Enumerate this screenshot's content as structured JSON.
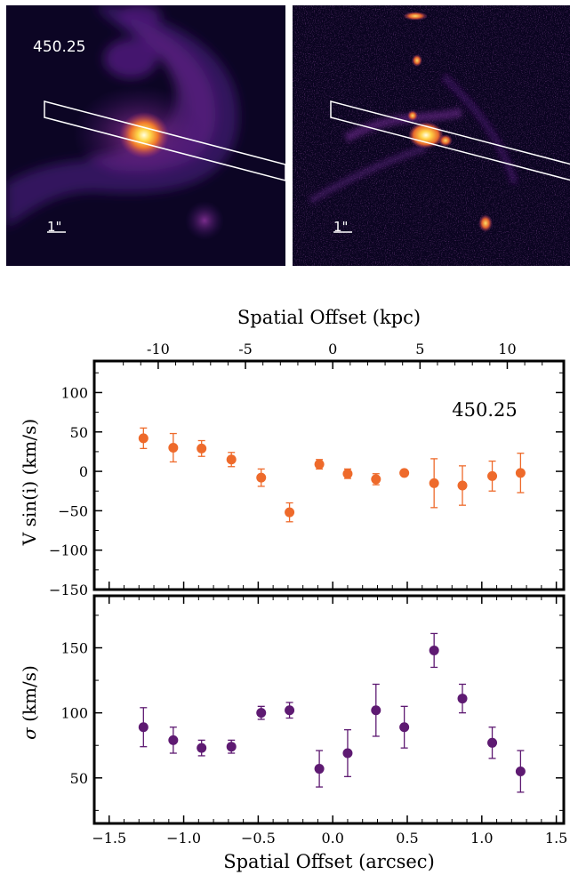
{
  "images": [
    {
      "label": "450.25",
      "scale_label": "1\""
    },
    {
      "label": "",
      "scale_label": "1\""
    }
  ],
  "colors": {
    "velocity": "#ee6a2b",
    "dispersion": "#5e1a72",
    "axes": "#000000"
  },
  "chart_data": [
    {
      "type": "scatter",
      "title": "",
      "annotation": "450.25",
      "top_xlabel": "Spatial Offset (kpc)",
      "top_xticks": [
        -10,
        -5,
        0,
        5,
        10
      ],
      "ylabel": "V sin(i) (km/s)",
      "ylim": [
        -150,
        140
      ],
      "yticks": [
        -150,
        -100,
        -50,
        0,
        50,
        100
      ],
      "xlim": [
        -1.6,
        1.55
      ],
      "grid": false,
      "series": [
        {
          "x": [
            -1.27,
            -1.07,
            -0.88,
            -0.68,
            -0.48,
            -0.29,
            -0.09,
            0.1,
            0.29,
            0.48,
            0.68,
            0.87,
            1.07,
            1.26
          ],
          "y": [
            42,
            30,
            29,
            15,
            -8,
            -52,
            9,
            -3,
            -10,
            -2,
            -15,
            -18,
            -6,
            -2
          ],
          "yerr": [
            13,
            18,
            10,
            9,
            11,
            12,
            6,
            6,
            7,
            3,
            31,
            25,
            19,
            25
          ]
        }
      ]
    },
    {
      "type": "scatter",
      "title": "",
      "xlabel": "Spatial Offset (arcsec)",
      "ylabel": "σ (km/s)",
      "ylim": [
        15,
        190
      ],
      "yticks": [
        50,
        100,
        150
      ],
      "xlim": [
        -1.6,
        1.55
      ],
      "xticks": [
        -1.5,
        -1.0,
        -0.5,
        0.0,
        0.5,
        1.0,
        1.5
      ],
      "xtick_labels": [
        "−1.5",
        "−1.0",
        "−0.5",
        "0.0",
        "0.5",
        "1.0",
        "1.5"
      ],
      "grid": false,
      "series": [
        {
          "x": [
            -1.27,
            -1.07,
            -0.88,
            -0.68,
            -0.48,
            -0.29,
            -0.09,
            0.1,
            0.29,
            0.48,
            0.68,
            0.87,
            1.07,
            1.26
          ],
          "y": [
            89,
            79,
            73,
            74,
            100,
            102,
            57,
            69,
            102,
            89,
            148,
            111,
            77,
            55
          ],
          "yerr": [
            15,
            10,
            6,
            5,
            5,
            6,
            14,
            18,
            20,
            16,
            13,
            11,
            12,
            16
          ]
        }
      ]
    }
  ]
}
